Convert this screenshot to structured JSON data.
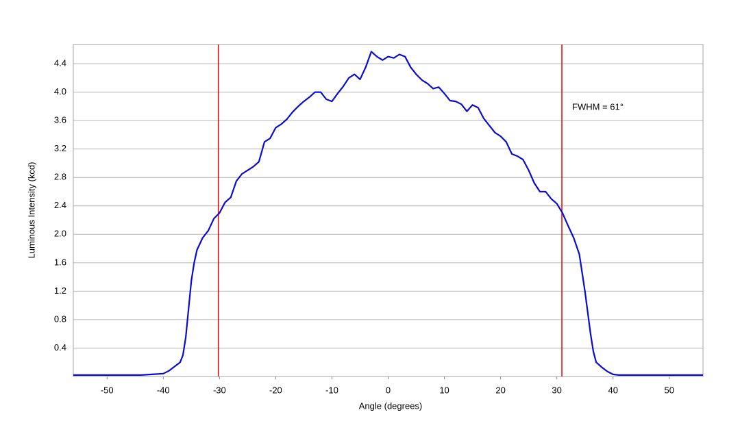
{
  "chart_data": {
    "type": "line",
    "xlabel": "Angle (degrees)",
    "ylabel": "Luminous Intensity (kcd)",
    "x": [
      -56,
      -52,
      -48,
      -44,
      -42,
      -40,
      -39,
      -38,
      -37,
      -36.5,
      -36,
      -35.5,
      -35,
      -34.5,
      -34,
      -33,
      -32,
      -31,
      -30,
      -29,
      -28,
      -27,
      -26,
      -25,
      -24,
      -23,
      -22,
      -21,
      -20,
      -19,
      -18,
      -17,
      -16,
      -15,
      -14,
      -13,
      -12,
      -11,
      -10,
      -9,
      -8,
      -7,
      -6,
      -5,
      -4,
      -3,
      -2,
      -1,
      0,
      1,
      2,
      3,
      4,
      5,
      6,
      7,
      8,
      9,
      10,
      11,
      12,
      13,
      14,
      15,
      16,
      17,
      18,
      19,
      20,
      21,
      22,
      23,
      24,
      25,
      26,
      27,
      28,
      29,
      30,
      31,
      32,
      33,
      34,
      35,
      35.5,
      36,
      36.5,
      37,
      38,
      39,
      40,
      41,
      44,
      48,
      52,
      56
    ],
    "series": [
      {
        "color": "#0a0ad2",
        "values": [
          0.02,
          0.02,
          0.02,
          0.02,
          0.03,
          0.04,
          0.08,
          0.14,
          0.2,
          0.3,
          0.55,
          0.95,
          1.35,
          1.6,
          1.78,
          1.95,
          2.05,
          2.22,
          2.3,
          2.45,
          2.52,
          2.75,
          2.85,
          2.9,
          2.95,
          3.02,
          3.3,
          3.35,
          3.5,
          3.55,
          3.62,
          3.72,
          3.8,
          3.87,
          3.93,
          4.0,
          4.0,
          3.9,
          3.87,
          3.98,
          4.08,
          4.2,
          4.25,
          4.18,
          4.35,
          4.57,
          4.5,
          4.45,
          4.5,
          4.48,
          4.53,
          4.5,
          4.35,
          4.25,
          4.17,
          4.12,
          4.05,
          4.07,
          3.98,
          3.88,
          3.87,
          3.83,
          3.73,
          3.82,
          3.78,
          3.63,
          3.53,
          3.43,
          3.38,
          3.3,
          3.13,
          3.1,
          3.05,
          2.9,
          2.72,
          2.6,
          2.6,
          2.5,
          2.43,
          2.3,
          2.12,
          1.95,
          1.72,
          1.2,
          0.9,
          0.6,
          0.35,
          0.2,
          0.13,
          0.07,
          0.03,
          0.02,
          0.02,
          0.02,
          0.02,
          0.02
        ]
      }
    ],
    "xlim": [
      -56,
      56
    ],
    "xticks": [
      -50,
      -40,
      -30,
      -20,
      -10,
      0,
      10,
      20,
      30,
      40,
      50
    ],
    "ylim": [
      0,
      4.67
    ],
    "yticks": [
      0.4,
      0.8,
      1.2,
      1.6,
      {
        "value": 2,
        "label": "2.0"
      },
      2.4,
      2.8,
      3.2,
      3.6,
      {
        "value": 4,
        "label": "4.0"
      },
      4.4
    ],
    "grid": true,
    "vlines": [
      {
        "value": -30.2,
        "color": "#e01010"
      },
      {
        "value": 30.9,
        "color": "#e01010"
      }
    ],
    "annotations": [
      "FWHM = 61°"
    ]
  }
}
